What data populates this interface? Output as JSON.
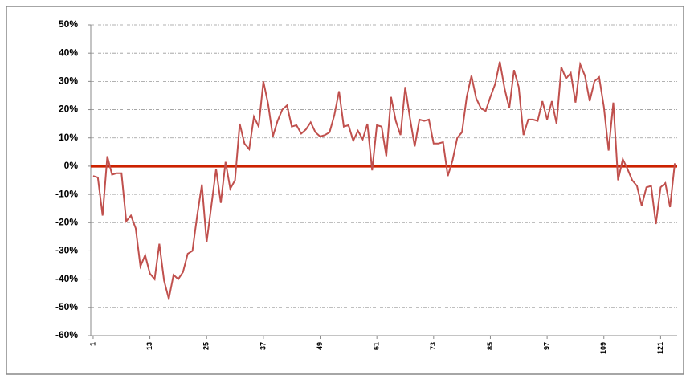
{
  "chart_data": {
    "type": "line",
    "x": [
      1,
      2,
      3,
      4,
      5,
      6,
      7,
      8,
      9,
      10,
      11,
      12,
      13,
      14,
      15,
      16,
      17,
      18,
      19,
      20,
      21,
      22,
      23,
      24,
      25,
      26,
      27,
      28,
      29,
      30,
      31,
      32,
      33,
      34,
      35,
      36,
      37,
      38,
      39,
      40,
      41,
      42,
      43,
      44,
      45,
      46,
      47,
      48,
      49,
      50,
      51,
      52,
      53,
      54,
      55,
      56,
      57,
      58,
      59,
      60,
      61,
      62,
      63,
      64,
      65,
      66,
      67,
      68,
      69,
      70,
      71,
      72,
      73,
      74,
      75,
      76,
      77,
      78,
      79,
      80,
      81,
      82,
      83,
      84,
      85,
      86,
      87,
      88,
      89,
      90,
      91,
      92,
      93,
      94,
      95,
      96,
      97,
      98,
      99,
      100,
      101,
      102,
      103,
      104,
      105,
      106,
      107,
      108,
      109,
      110,
      111,
      112,
      113,
      114,
      115,
      116,
      117,
      118,
      119,
      120,
      121,
      122,
      123,
      124
    ],
    "series": [
      {
        "color": "#c0504d",
        "values": [
          -3.5,
          -4,
          -17.5,
          3.5,
          -3,
          -2.5,
          -2.5,
          -19.5,
          -17.5,
          -22,
          -35.5,
          -31.5,
          -38,
          -40,
          -27.5,
          -40.5,
          -47,
          -38.5,
          -40,
          -37.5,
          -31,
          -30,
          -17.5,
          -6.5,
          -27,
          -14,
          -1,
          -13,
          1.5,
          -8,
          -5,
          15,
          8,
          6,
          17.5,
          14,
          30,
          22,
          10.5,
          16,
          20,
          21.5,
          14,
          14.5,
          11.5,
          13,
          15.5,
          12,
          10.5,
          11,
          12,
          18,
          26.5,
          14,
          14.5,
          9,
          12.5,
          9.5,
          15,
          -1.5,
          14.5,
          14,
          3.5,
          24.5,
          16,
          11,
          28,
          17,
          7,
          16.5,
          16,
          16.5,
          8,
          8,
          8.5,
          -3.5,
          2,
          10,
          12,
          24.5,
          32,
          24,
          20.5,
          19.5,
          24.5,
          29,
          37,
          27.5,
          20.5,
          34,
          28,
          11,
          16.5,
          16.5,
          16,
          23,
          16.5,
          23,
          15,
          35,
          31,
          33,
          22.5,
          36,
          32,
          23,
          30,
          31.5,
          21,
          5.5,
          22.5,
          -5,
          2.5,
          -1,
          -5,
          -7,
          -14,
          -7.5,
          -7,
          -20.5,
          -7.5,
          -6,
          -14.5,
          1
        ]
      }
    ],
    "xlim": [
      0.5,
      124.5
    ],
    "xticks": [
      1,
      13,
      25,
      37,
      49,
      61,
      73,
      85,
      97,
      109,
      121
    ],
    "ylim": [
      -60,
      50
    ],
    "yticks": [
      {
        "value": -60,
        "label": "-60%"
      },
      {
        "value": -50,
        "label": "-50%"
      },
      {
        "value": -40,
        "label": "-40%"
      },
      {
        "value": -30,
        "label": "-30%"
      },
      {
        "value": -20,
        "label": "-20%"
      },
      {
        "value": -10,
        "label": "-10%"
      },
      {
        "value": 0,
        "label": "0%"
      },
      {
        "value": 10,
        "label": "10%"
      },
      {
        "value": 20,
        "label": "20%"
      },
      {
        "value": 30,
        "label": "30%"
      },
      {
        "value": 40,
        "label": "40%"
      },
      {
        "value": 50,
        "label": "50%"
      }
    ],
    "grid": true,
    "baseline_color": "#cc2200"
  }
}
